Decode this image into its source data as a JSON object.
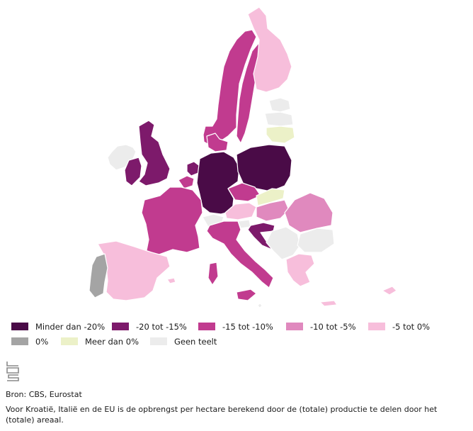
{
  "colors": {
    "minder_dan_20": "#4a0b47",
    "min20_min15": "#7d1a6b",
    "min15_min10": "#c13b8f",
    "min10_min5": "#e089be",
    "min5_0": "#f7bedb",
    "nul": "#a4a4a4",
    "meer_dan_0": "#ecf1c8",
    "geen_teelt": "#ececec"
  },
  "legend": [
    {
      "label": "Minder dan -20%",
      "color": "#4a0b47"
    },
    {
      "label": "-20 tot -15%",
      "color": "#7d1a6b"
    },
    {
      "label": "-15 tot -10%",
      "color": "#c13b8f"
    },
    {
      "label": "-10 tot -5%",
      "color": "#e089be"
    },
    {
      "label": "-5 tot 0%",
      "color": "#f7bedb"
    },
    {
      "label": "0%",
      "color": "#a4a4a4"
    },
    {
      "label": "Meer dan 0%",
      "color": "#ecf1c8"
    },
    {
      "label": "Geen teelt",
      "color": "#ececec"
    }
  ],
  "logo_text": "cbs",
  "source": "Bron: CBS, Eurostat",
  "note": "Voor Kroatië, Italië en de EU is de opbrengst per hectare berekend door de (totale) productie te delen door het (totale) areaal."
}
